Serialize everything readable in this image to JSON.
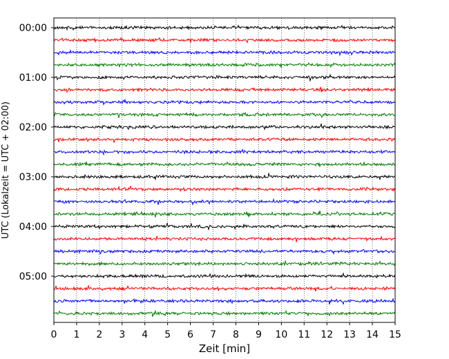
{
  "chart_data": {
    "type": "line",
    "chart_kind": "seismogram helicorder (dayplot)",
    "xlabel": "Zeit  [min]",
    "ylabel": "UTC (Lokalzeit = UTC + 02:00)",
    "xlim": [
      0,
      15
    ],
    "x_ticks": [
      0,
      1,
      2,
      3,
      4,
      5,
      6,
      7,
      8,
      9,
      10,
      11,
      12,
      13,
      14,
      15
    ],
    "x_tick_labels": [
      "0",
      "1",
      "2",
      "3",
      "4",
      "5",
      "6",
      "7",
      "8",
      "9",
      "10",
      "11",
      "12",
      "13",
      "14",
      "15"
    ],
    "y_tick_labels": [
      "00:00",
      "01:00",
      "02:00",
      "03:00",
      "04:00",
      "05:00"
    ],
    "grid": "vertical dotted lines at each minute",
    "trace_interval_minutes": 15,
    "trace_count": 24,
    "trace_colors": [
      "#000000",
      "#ff0000",
      "#0000ff",
      "#007a00"
    ],
    "trace_start_times": [
      "00:00",
      "00:15",
      "00:30",
      "00:45",
      "01:00",
      "01:15",
      "01:30",
      "01:45",
      "02:00",
      "02:15",
      "02:30",
      "02:45",
      "03:00",
      "03:15",
      "03:30",
      "03:45",
      "04:00",
      "04:15",
      "04:30",
      "04:45",
      "05:00",
      "05:15",
      "05:30",
      "05:45"
    ],
    "legend": "none"
  }
}
